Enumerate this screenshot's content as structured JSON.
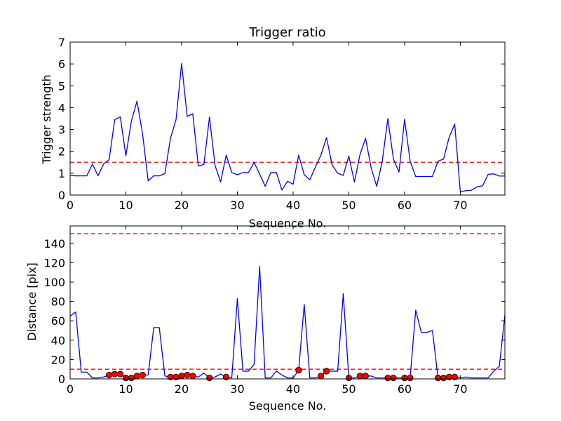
{
  "chart_data": [
    {
      "type": "line",
      "title": "Trigger ratio",
      "xlabel": "Sequence No.",
      "ylabel": "Trigger strength",
      "xlim": [
        0,
        78
      ],
      "ylim": [
        0,
        7
      ],
      "xticks": [
        0,
        10,
        20,
        30,
        40,
        50,
        60,
        70
      ],
      "yticks": [
        0,
        1,
        2,
        3,
        4,
        5,
        6,
        7
      ],
      "grid": false,
      "line_color": "#0000ff",
      "threshold": {
        "value": 1.5,
        "color": "#ff0000",
        "style": "dashed"
      },
      "series": [
        {
          "x": [
            0,
            1,
            2,
            3,
            4,
            5,
            6,
            7,
            8,
            9,
            10,
            11,
            12,
            13,
            14,
            15,
            16,
            17,
            18,
            19,
            20,
            21,
            22,
            23,
            24,
            25,
            26,
            27,
            28,
            29,
            30,
            31,
            32,
            33,
            34,
            35,
            36,
            37,
            38,
            39,
            40,
            41,
            42,
            43,
            44,
            45,
            46,
            47,
            48,
            49,
            50,
            51,
            52,
            53,
            54,
            55,
            56,
            57,
            58,
            59,
            60,
            61,
            62,
            63,
            64,
            65,
            66,
            67,
            68,
            69,
            70,
            71,
            72,
            73,
            74,
            75,
            76,
            77,
            78
          ],
          "values": [
            0.9,
            0.88,
            0.88,
            0.88,
            1.42,
            0.88,
            1.42,
            1.62,
            3.45,
            3.58,
            1.8,
            3.4,
            4.3,
            2.8,
            0.65,
            0.88,
            0.88,
            0.98,
            2.6,
            3.45,
            6.02,
            3.6,
            3.72,
            1.33,
            1.4,
            3.57,
            1.35,
            0.6,
            1.83,
            1.03,
            0.93,
            1.03,
            1.03,
            1.5,
            0.96,
            0.4,
            1.03,
            1.03,
            0.23,
            0.63,
            0.5,
            1.83,
            0.93,
            0.7,
            1.28,
            1.83,
            2.63,
            1.38,
            1.0,
            0.9,
            1.78,
            0.6,
            1.85,
            2.6,
            1.25,
            0.4,
            1.55,
            3.5,
            1.65,
            1.05,
            3.47,
            1.55,
            0.85,
            0.85,
            0.85,
            0.85,
            1.55,
            1.65,
            2.65,
            3.25,
            0.15,
            0.2,
            0.22,
            0.38,
            0.42,
            0.95,
            0.97,
            0.87,
            0.87
          ]
        }
      ]
    },
    {
      "type": "line",
      "title": "",
      "xlabel": "Sequence No.",
      "ylabel": "Distance [pix]",
      "xlim": [
        0,
        78
      ],
      "ylim": [
        0,
        158
      ],
      "xticks": [
        0,
        10,
        20,
        30,
        40,
        50,
        60,
        70
      ],
      "yticks": [
        0,
        20,
        40,
        60,
        80,
        100,
        120,
        140
      ],
      "grid": false,
      "line_color": "#0000ff",
      "thresholds": [
        {
          "value": 150,
          "color": "#ff0000",
          "style": "dashed"
        },
        {
          "value": 10,
          "color": "#ff0000",
          "style": "dashed"
        }
      ],
      "series": [
        {
          "x": [
            0,
            1,
            2,
            3,
            4,
            5,
            6,
            7,
            8,
            9,
            10,
            11,
            12,
            13,
            14,
            15,
            16,
            17,
            18,
            19,
            20,
            21,
            22,
            23,
            24,
            25,
            26,
            27,
            28,
            29,
            30,
            31,
            32,
            33,
            34,
            35,
            36,
            37,
            38,
            39,
            40,
            41,
            42,
            43,
            44,
            45,
            46,
            47,
            48,
            49,
            50,
            51,
            52,
            53,
            54,
            55,
            56,
            57,
            58,
            59,
            60,
            61,
            62,
            63,
            64,
            65,
            66,
            67,
            68,
            69,
            70,
            71,
            72,
            73,
            74,
            75,
            76,
            77,
            78
          ],
          "values": [
            65,
            69,
            7,
            7,
            1,
            1,
            2,
            4,
            5,
            5,
            1,
            1,
            3,
            4,
            4,
            53,
            53,
            3,
            2,
            2,
            3,
            4,
            3,
            2,
            6,
            1,
            2,
            5,
            2,
            1,
            83,
            8,
            8,
            15,
            116,
            1,
            1,
            8,
            4,
            1,
            1,
            9,
            77,
            1,
            1,
            3,
            8,
            8,
            8,
            88,
            1,
            1,
            3,
            3,
            3,
            1,
            1,
            1,
            1,
            1,
            1,
            1,
            71,
            48,
            48,
            50,
            1,
            1,
            2,
            2,
            1,
            2,
            1,
            1,
            1,
            1,
            8,
            13,
            66
          ]
        }
      ],
      "markers": {
        "color": "#ff0000",
        "x": [
          7,
          8,
          9,
          10,
          11,
          12,
          13,
          18,
          19,
          20,
          21,
          22,
          25,
          28,
          41,
          45,
          46,
          50,
          52,
          53,
          57,
          58,
          60,
          61,
          66,
          67,
          68,
          69
        ],
        "values": [
          4,
          5,
          5,
          1,
          1,
          3,
          4,
          2,
          2,
          3,
          4,
          3,
          1,
          2,
          9,
          3,
          8,
          1,
          3,
          3,
          1,
          1,
          1,
          1,
          1,
          1,
          2,
          2
        ]
      }
    }
  ]
}
